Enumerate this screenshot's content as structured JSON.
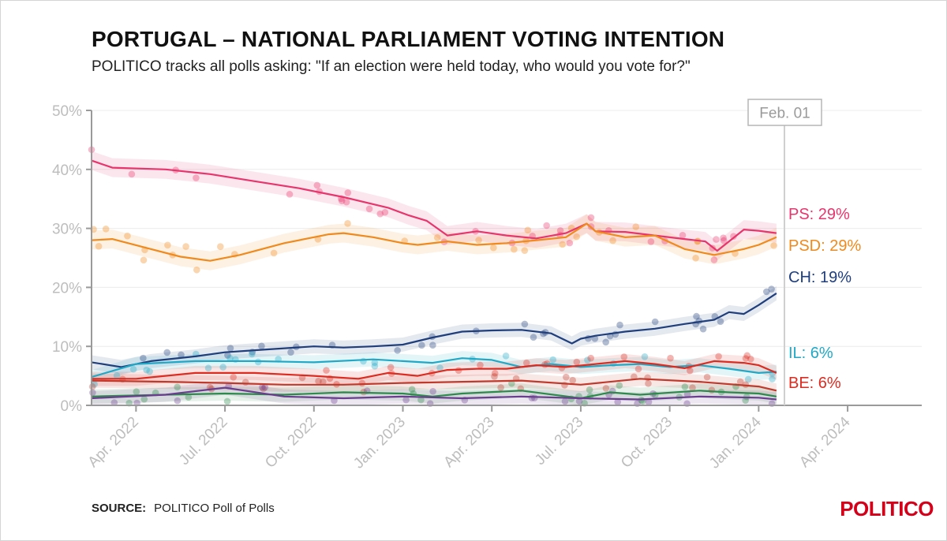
{
  "title": "PORTUGAL – NATIONAL PARLIAMENT VOTING INTENTION",
  "subtitle": "POLITICO tracks all polls asking: \"If an election were held today, who would you vote for?\"",
  "source_label": "SOURCE:",
  "source_text": "POLITICO Poll of Polls",
  "brand": "POLITICO",
  "chart_data": {
    "type": "line",
    "x_unit": "months since 2022-01-01",
    "xlim": [
      1.5,
      29.5
    ],
    "ylim": [
      0,
      50
    ],
    "y_ticks": [
      0,
      10,
      20,
      30,
      40,
      50
    ],
    "y_tick_labels": [
      "0%",
      "10%",
      "20%",
      "30%",
      "40%",
      "50%"
    ],
    "x_ticks": [
      3,
      6,
      9,
      12,
      15,
      18,
      21,
      24,
      27
    ],
    "x_tick_labels": [
      "Apr. 2022",
      "Jul. 2022",
      "Oct. 2022",
      "Jan. 2023",
      "Apr. 2023",
      "Jul. 2023",
      "Oct. 2023",
      "Jan. 2024",
      "Apr. 2024"
    ],
    "marker": {
      "x": 25.0,
      "label": "Feb. 01"
    },
    "series": [
      {
        "name": "PS",
        "label": "PS: 29%",
        "color": "#e8356d",
        "x": [
          1.5,
          2.2,
          4,
          5.5,
          7,
          8.5,
          10,
          11.5,
          12.2,
          12.8,
          13.5,
          14.5,
          15.5,
          16.5,
          17.5,
          18.2,
          18.5,
          19.5,
          20.5,
          21.5,
          22.2,
          22.6,
          23,
          23.5,
          24,
          24.6
        ],
        "values": [
          41.5,
          40.3,
          40,
          39.2,
          38,
          36.8,
          35.3,
          33.5,
          32.2,
          31.3,
          28.8,
          29.5,
          28.8,
          28.3,
          29.2,
          30.8,
          29.5,
          29.4,
          28.8,
          28.2,
          27.8,
          26.2,
          27.8,
          29.8,
          29.6,
          29.2
        ]
      },
      {
        "name": "PSD",
        "label": "PSD: 29%",
        "color": "#f08a1c",
        "x": [
          1.5,
          2.2,
          3.5,
          4.5,
          5.5,
          6.5,
          8,
          9,
          9.5,
          10,
          11,
          12,
          12.5,
          13.5,
          14.5,
          15.5,
          16.5,
          17.5,
          18.2,
          18.5,
          19.5,
          20.5,
          21.5,
          22.5,
          23.5,
          24,
          24.6
        ],
        "values": [
          28,
          28.2,
          26.5,
          25.2,
          24.5,
          25.5,
          27.5,
          28.5,
          29,
          29.2,
          28.5,
          27.5,
          27.2,
          27.8,
          27.2,
          27.5,
          28,
          28.5,
          30.8,
          29.5,
          28.5,
          28.8,
          26.5,
          25.5,
          26.5,
          27.2,
          28.5
        ]
      },
      {
        "name": "CH",
        "label": "CH: 19%",
        "color": "#1f3e7c",
        "x": [
          1.5,
          2.5,
          3.5,
          5,
          6,
          7.5,
          9,
          10,
          11,
          12,
          13,
          14,
          15,
          16,
          17,
          17.7,
          18,
          18.5,
          19.5,
          20.5,
          21.5,
          22.5,
          23,
          23.5,
          24,
          24.6
        ],
        "values": [
          7.3,
          6.5,
          7.5,
          8.3,
          9,
          9.5,
          10,
          9.8,
          10,
          10.3,
          11.5,
          12.5,
          12.7,
          12.8,
          12.2,
          10.5,
          11.3,
          11.8,
          12.5,
          13,
          13.8,
          14.5,
          15.8,
          15.5,
          17,
          19
        ]
      },
      {
        "name": "IL",
        "label": "IL: 6%",
        "color": "#1fa9c7",
        "x": [
          1.5,
          3,
          5,
          7,
          9,
          11,
          12,
          13,
          14,
          15,
          16,
          17,
          18,
          19,
          20,
          21,
          22,
          23,
          24,
          24.6
        ],
        "values": [
          4.8,
          7,
          7.5,
          7.5,
          7.3,
          7.8,
          7.5,
          7.2,
          8,
          7.7,
          6.5,
          7,
          6.5,
          6.8,
          7,
          6.5,
          6.8,
          6.2,
          5.5,
          5.7
        ]
      },
      {
        "name": "BE",
        "label": "BE: 6%",
        "color": "#dd2b20",
        "x": [
          1.5,
          3,
          5,
          7,
          9,
          10.5,
          11.5,
          12.5,
          13.5,
          14.5,
          15.5,
          16.5,
          17.5,
          18.5,
          19.5,
          20.5,
          21.5,
          22.5,
          23.5,
          24,
          24.6
        ],
        "values": [
          4.5,
          4.5,
          5.5,
          5.5,
          5,
          4.5,
          5.5,
          5,
          6,
          6.2,
          6.2,
          6.8,
          6.5,
          7,
          7.5,
          7,
          6.3,
          7.5,
          7.2,
          6.8,
          5.5
        ]
      },
      {
        "name": "Other red",
        "label": "",
        "color": "#c0392b",
        "x": [
          1.5,
          4,
          6,
          8,
          10,
          12,
          14,
          16,
          18,
          20,
          22,
          24,
          24.6
        ],
        "values": [
          4.2,
          4,
          3.8,
          3.5,
          3.5,
          3.8,
          4,
          4.2,
          3.5,
          4.5,
          4,
          3.2,
          2.5
        ]
      },
      {
        "name": "Other green",
        "label": "",
        "color": "#2c8a4b",
        "x": [
          1.5,
          4,
          6,
          8,
          10,
          12,
          13,
          14,
          16,
          18,
          19,
          20,
          22,
          23,
          24,
          24.6
        ],
        "values": [
          1.5,
          1.8,
          2,
          1.8,
          2.2,
          2,
          1.5,
          2,
          2.5,
          1.2,
          2.2,
          1.8,
          2.5,
          2.2,
          2,
          1.5
        ]
      },
      {
        "name": "Other purple",
        "label": "",
        "color": "#6a3d8f",
        "x": [
          1.5,
          4,
          6,
          8,
          10,
          12,
          14,
          16,
          18,
          20,
          22,
          24,
          24.6
        ],
        "values": [
          1.2,
          1.8,
          3,
          1.5,
          1.2,
          1.5,
          1.2,
          1.5,
          1.2,
          1,
          1.5,
          1.3,
          1
        ]
      }
    ]
  }
}
